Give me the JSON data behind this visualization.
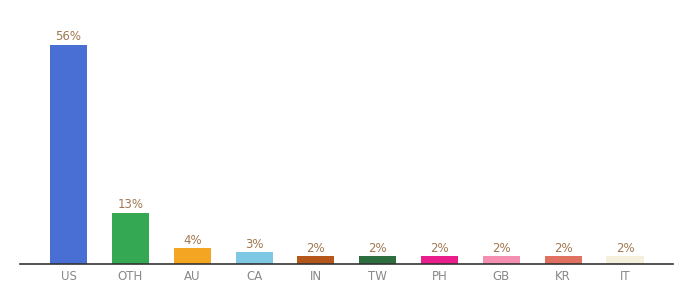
{
  "categories": [
    "US",
    "OTH",
    "AU",
    "CA",
    "IN",
    "TW",
    "PH",
    "GB",
    "KR",
    "IT"
  ],
  "values": [
    56,
    13,
    4,
    3,
    2,
    2,
    2,
    2,
    2,
    2
  ],
  "bar_colors": [
    "#4a6fd4",
    "#34a853",
    "#f4a622",
    "#7ec8e3",
    "#b5571b",
    "#2d6e3e",
    "#e91e8c",
    "#f48fb1",
    "#e07060",
    "#f5f0dc"
  ],
  "labels": [
    "56%",
    "13%",
    "4%",
    "3%",
    "2%",
    "2%",
    "2%",
    "2%",
    "2%",
    "2%"
  ],
  "label_color": "#a07850",
  "ylim": [
    0,
    62
  ],
  "background_color": "#ffffff",
  "label_fontsize": 8.5,
  "tick_fontsize": 8.5,
  "tick_color": "#888888"
}
